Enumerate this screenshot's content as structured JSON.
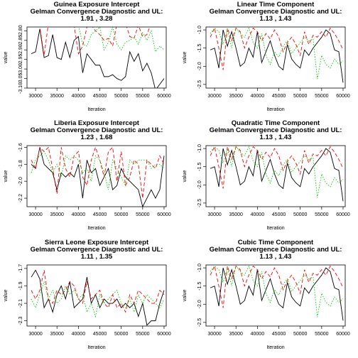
{
  "chart_data": [
    {
      "type": "line",
      "title": [
        "Guinea Exposure Intercept",
        "Gelman Convergence Diagnostic and UL:",
        "1.91 ,  3.28"
      ],
      "xlabel": "Iteration",
      "ylabel": "value",
      "xlim": [
        28000,
        60500
      ],
      "ylim": [
        -3.1,
        -2.78
      ],
      "xticks": [
        30000,
        35000,
        40000,
        45000,
        50000,
        55000,
        60000
      ],
      "yticks": [
        -3.1,
        -3.05,
        -3.0,
        -2.95,
        -2.9,
        -2.85,
        -2.8
      ],
      "ytick_labels": [
        "-3.10",
        "-3.05",
        "-3.00",
        "-2.95",
        "-2.90",
        "-2.85",
        "-2.80"
      ],
      "x": [
        29000,
        30000,
        31000,
        32000,
        33000,
        34000,
        35000,
        36000,
        37000,
        38000,
        39000,
        40000,
        41000,
        42000,
        43000,
        44000,
        45000,
        46000,
        47000,
        48000,
        49000,
        50000,
        51000,
        52000,
        53000,
        54000,
        55000,
        56000,
        57000,
        58000,
        59000,
        60000
      ],
      "series": [
        {
          "color": "#000000",
          "dash": "",
          "values": [
            -2.92,
            -2.91,
            -2.79,
            -2.94,
            -2.93,
            -2.82,
            -2.94,
            -2.95,
            -2.86,
            -2.94,
            -2.85,
            -2.83,
            -3.02,
            -2.92,
            -2.95,
            -2.98,
            -2.98,
            -3.04,
            -3.04,
            -3.03,
            -3.05,
            -3.06,
            -3.04,
            -2.91,
            -2.96,
            -2.92,
            -3.01,
            -2.97,
            -3.02,
            -3.11,
            -3.08,
            -3.05
          ]
        },
        {
          "color": "#ff0000",
          "dash": "5,3",
          "values": [
            -2.77,
            -2.77,
            -2.78,
            -2.93,
            -2.76,
            -2.76,
            -2.76,
            -2.77,
            -2.77,
            -2.78,
            -2.77,
            -2.92,
            -2.88,
            -2.78,
            -2.77,
            -2.8,
            -2.82,
            -2.85,
            -2.84,
            -2.88,
            -2.76,
            -2.77,
            -2.76,
            -2.83,
            -2.84,
            -2.77,
            -2.83,
            -2.82,
            -2.76,
            -2.75,
            -2.76,
            -2.77
          ]
        },
        {
          "color": "#00cc00",
          "dash": "1.5,2",
          "values": [
            -2.77,
            -2.76,
            -2.77,
            -2.76,
            -2.77,
            -2.76,
            -2.76,
            -2.77,
            -2.76,
            -2.77,
            -2.76,
            -2.77,
            -2.87,
            -2.88,
            -2.82,
            -2.8,
            -2.78,
            -2.9,
            -2.86,
            -2.78,
            -2.87,
            -2.9,
            -2.86,
            -2.85,
            -2.83,
            -2.87,
            -2.81,
            -2.85,
            -2.8,
            -2.91,
            -2.88,
            -2.9
          ]
        }
      ]
    },
    {
      "type": "line",
      "title": [
        "Linear Time Component",
        "Gelman Convergence Diagnostic and UL:",
        "1.13 ,  1.43"
      ],
      "xlabel": "Iteration",
      "ylabel": "value",
      "xlim": [
        28000,
        60500
      ],
      "ylim": [
        -2.6,
        -0.92
      ],
      "xticks": [
        30000,
        35000,
        40000,
        45000,
        50000,
        55000,
        60000
      ],
      "yticks": [
        -2.5,
        -2.0,
        -1.5,
        -1.0
      ],
      "ytick_labels": [
        "-2.5",
        "-2.0",
        "-1.5",
        "-1.0"
      ],
      "x": [
        29000,
        30000,
        31000,
        32000,
        33000,
        34000,
        35000,
        36000,
        37000,
        38000,
        39000,
        40000,
        41000,
        42000,
        43000,
        44000,
        45000,
        46000,
        47000,
        48000,
        49000,
        50000,
        51000,
        52000,
        53000,
        54000,
        55000,
        56000,
        57000,
        58000,
        59000,
        60000
      ],
      "series": [
        {
          "color": "#000000",
          "dash": "",
          "values": [
            -1.55,
            -1.5,
            -2.05,
            -1.0,
            -1.45,
            -1.05,
            -1.5,
            -2.0,
            -1.9,
            -1.5,
            -1.75,
            -1.05,
            -1.9,
            -1.6,
            -1.3,
            -1.7,
            -2.0,
            -2.1,
            -1.4,
            -1.8,
            -1.95,
            -2.05,
            -1.55,
            -1.7,
            -1.5,
            -1.35,
            -1.2,
            -1.0,
            -1.1,
            -1.55,
            -1.6,
            -2.45
          ]
        },
        {
          "color": "#ff0000",
          "dash": "5,3",
          "values": [
            -1.2,
            -0.95,
            -1.5,
            -2.1,
            -0.95,
            -1.3,
            -0.95,
            -1.05,
            -1.5,
            -1.2,
            -0.95,
            -1.05,
            -1.3,
            -1.1,
            -1.25,
            -1.0,
            -1.2,
            -1.6,
            -1.35,
            -1.2,
            -1.4,
            -1.7,
            -1.05,
            -1.4,
            -1.15,
            -1.2,
            -1.05,
            -1.2,
            -0.95,
            -1.1,
            -1.3,
            -1.55
          ]
        },
        {
          "color": "#00cc00",
          "dash": "1.5,2",
          "values": [
            -1.1,
            -0.95,
            -1.05,
            -1.4,
            -1.0,
            -1.5,
            -0.95,
            -1.1,
            -1.2,
            -0.95,
            -1.35,
            -1.5,
            -1.1,
            -1.7,
            -1.95,
            -1.6,
            -1.75,
            -1.45,
            -1.3,
            -1.65,
            -1.5,
            -1.35,
            -1.2,
            -1.3,
            -1.25,
            -2.35,
            -1.7,
            -1.95,
            -2.05,
            -1.8,
            -1.95,
            -1.85
          ]
        }
      ]
    },
    {
      "type": "line",
      "title": [
        "Liberia Exposure Intercept",
        "Gelman Convergence Diagnostic and UL:",
        "1.23 ,  1.68"
      ],
      "xlabel": "Iteration",
      "ylabel": "value",
      "xlim": [
        28000,
        60500
      ],
      "ylim": [
        -2.3,
        -1.58
      ],
      "xticks": [
        30000,
        35000,
        40000,
        45000,
        50000,
        55000,
        60000
      ],
      "yticks": [
        -2.2,
        -2.0,
        -1.8,
        -1.6
      ],
      "ytick_labels": [
        "-2.2",
        "-2.0",
        "-1.8",
        "-1.6"
      ],
      "x": [
        29000,
        30000,
        31000,
        32000,
        33000,
        34000,
        35000,
        36000,
        37000,
        38000,
        39000,
        40000,
        41000,
        42000,
        43000,
        44000,
        45000,
        46000,
        47000,
        48000,
        49000,
        50000,
        51000,
        52000,
        53000,
        54000,
        55000,
        56000,
        57000,
        58000,
        59000,
        60000
      ],
      "series": [
        {
          "color": "#000000",
          "dash": "",
          "values": [
            -1.8,
            -1.85,
            -1.6,
            -1.8,
            -1.85,
            -1.9,
            -2.1,
            -1.9,
            -1.95,
            -1.9,
            -1.95,
            -1.8,
            -2.2,
            -1.75,
            -1.9,
            -1.85,
            -2.05,
            -1.95,
            -1.85,
            -2.1,
            -2.05,
            -1.85,
            -1.95,
            -2.0,
            -2.05,
            -2.1,
            -2.3,
            -2.2,
            -2.1,
            -2.2,
            -2.1,
            -1.7
          ]
        },
        {
          "color": "#ff0000",
          "dash": "5,3",
          "values": [
            -1.75,
            -1.85,
            -1.6,
            -1.65,
            -1.6,
            -1.85,
            -2.15,
            -1.6,
            -1.85,
            -1.95,
            -1.7,
            -1.65,
            -1.95,
            -2.05,
            -1.75,
            -1.6,
            -1.75,
            -1.95,
            -1.65,
            -1.6,
            -2.0,
            -1.65,
            -2.05,
            -1.95,
            -1.75,
            -1.8,
            -2.2,
            -1.75,
            -1.8,
            -1.85,
            -1.7,
            -1.8
          ]
        },
        {
          "color": "#00cc00",
          "dash": "1.5,2",
          "values": [
            -1.9,
            -1.75,
            -1.7,
            -1.65,
            -1.75,
            -1.9,
            -1.8,
            -1.95,
            -1.7,
            -1.75,
            -1.7,
            -1.75,
            -1.9,
            -1.85,
            -2.0,
            -1.7,
            -1.75,
            -1.9,
            -2.1,
            -1.75,
            -1.85,
            -1.95,
            -2.05,
            -1.75,
            -1.8,
            -1.75,
            -1.75,
            -1.75,
            -1.85,
            -1.8,
            -1.8,
            -1.85
          ]
        }
      ]
    },
    {
      "type": "line",
      "title": [
        "Quadratic Time Component",
        "Gelman Convergence Diagnostic and UL:",
        "1.13 ,  1.43"
      ],
      "xlabel": "Iteration",
      "ylabel": "value",
      "xlim": [
        28000,
        60500
      ],
      "ylim": [
        -2.6,
        -0.92
      ],
      "xticks": [
        30000,
        35000,
        40000,
        45000,
        50000,
        55000,
        60000
      ],
      "yticks": [
        -2.5,
        -2.0,
        -1.5,
        -1.0
      ],
      "ytick_labels": [
        "-2.5",
        "-2.0",
        "-1.5",
        "-1.0"
      ],
      "x": [
        29000,
        30000,
        31000,
        32000,
        33000,
        34000,
        35000,
        36000,
        37000,
        38000,
        39000,
        40000,
        41000,
        42000,
        43000,
        44000,
        45000,
        46000,
        47000,
        48000,
        49000,
        50000,
        51000,
        52000,
        53000,
        54000,
        55000,
        56000,
        57000,
        58000,
        59000,
        60000
      ],
      "series": [
        {
          "color": "#000000",
          "dash": "",
          "values": [
            -1.55,
            -1.5,
            -2.05,
            -1.0,
            -1.45,
            -1.05,
            -1.5,
            -2.0,
            -1.9,
            -1.5,
            -1.75,
            -1.05,
            -1.9,
            -1.6,
            -1.3,
            -1.7,
            -2.0,
            -2.1,
            -1.4,
            -1.8,
            -1.95,
            -2.05,
            -1.55,
            -1.7,
            -1.5,
            -1.35,
            -1.2,
            -1.0,
            -1.1,
            -1.55,
            -1.6,
            -2.45
          ]
        },
        {
          "color": "#ff0000",
          "dash": "5,3",
          "values": [
            -1.2,
            -0.95,
            -1.5,
            -2.1,
            -0.95,
            -1.3,
            -0.95,
            -1.05,
            -1.5,
            -1.2,
            -0.95,
            -1.05,
            -1.3,
            -1.1,
            -1.25,
            -1.0,
            -1.2,
            -1.6,
            -1.35,
            -1.2,
            -1.4,
            -1.7,
            -1.05,
            -1.4,
            -1.15,
            -1.2,
            -1.05,
            -1.2,
            -0.95,
            -1.1,
            -1.3,
            -1.55
          ]
        },
        {
          "color": "#00cc00",
          "dash": "1.5,2",
          "values": [
            -1.1,
            -0.95,
            -1.05,
            -1.4,
            -1.0,
            -1.5,
            -0.95,
            -1.1,
            -1.2,
            -0.95,
            -1.35,
            -1.5,
            -1.1,
            -1.7,
            -1.95,
            -1.6,
            -1.75,
            -1.45,
            -1.3,
            -1.65,
            -1.5,
            -1.35,
            -1.2,
            -1.3,
            -1.25,
            -2.35,
            -1.7,
            -1.95,
            -2.05,
            -1.8,
            -1.95,
            -1.85
          ]
        }
      ]
    },
    {
      "type": "line",
      "title": [
        "Sierra Leone Exposure Intercept",
        "Gelman Convergence Diagnostic and UL:",
        "1.11 ,  1.35"
      ],
      "xlabel": "Iteration",
      "ylabel": "value",
      "xlim": [
        28000,
        60500
      ],
      "ylim": [
        -2.36,
        -1.66
      ],
      "xticks": [
        30000,
        35000,
        40000,
        45000,
        50000,
        55000,
        60000
      ],
      "yticks": [
        -2.3,
        -2.1,
        -1.9,
        -1.7
      ],
      "ytick_labels": [
        "-2.3",
        "-2.1",
        "-1.9",
        "-1.7"
      ],
      "x": [
        29000,
        30000,
        31000,
        32000,
        33000,
        34000,
        35000,
        36000,
        37000,
        38000,
        39000,
        40000,
        41000,
        42000,
        43000,
        44000,
        45000,
        46000,
        47000,
        48000,
        49000,
        50000,
        51000,
        52000,
        53000,
        54000,
        55000,
        56000,
        57000,
        58000,
        59000,
        60000
      ],
      "series": [
        {
          "color": "#000000",
          "dash": "",
          "values": [
            -1.8,
            -1.72,
            -1.82,
            -2.15,
            -2.05,
            -2.2,
            -2.0,
            -1.9,
            -2.05,
            -1.85,
            -2.15,
            -2.1,
            -2.05,
            -1.8,
            -2.1,
            -2.0,
            -2.15,
            -2.05,
            -2.1,
            -2.1,
            -2.05,
            -2.15,
            -2.1,
            -2.15,
            -2.1,
            -2.25,
            -2.1,
            -2.35,
            -2.3,
            -2.3,
            -2.1,
            -1.95
          ]
        },
        {
          "color": "#ff0000",
          "dash": "5,3",
          "values": [
            -1.95,
            -2.05,
            -1.95,
            -1.72,
            -2.05,
            -2.1,
            -1.95,
            -2.0,
            -1.95,
            -1.85,
            -1.9,
            -2.05,
            -2.1,
            -1.85,
            -2.05,
            -2.0,
            -1.95,
            -2.1,
            -2.15,
            -2.0,
            -2.15,
            -2.1,
            -2.2,
            -2.0,
            -2.1,
            -1.95,
            -2.0,
            -2.05,
            -2.1,
            -2.1,
            -1.95,
            -2.0
          ]
        },
        {
          "color": "#00cc00",
          "dash": "1.5,2",
          "values": [
            -2.05,
            -2.15,
            -2.0,
            -1.85,
            -2.05,
            -1.95,
            -2.1,
            -2.05,
            -1.9,
            -2.0,
            -1.95,
            -2.05,
            -2.0,
            -2.2,
            -2.1,
            -2.25,
            -2.0,
            -2.1,
            -2.05,
            -2.0,
            -1.95,
            -2.1,
            -2.15,
            -2.05,
            -2.2,
            -2.0,
            -2.1,
            -2.0,
            -2.05,
            -2.1,
            -2.15,
            -2.05
          ]
        }
      ]
    },
    {
      "type": "line",
      "title": [
        "Cubic Time Component",
        "Gelman Convergence Diagnostic and UL:",
        "1.13 ,  1.43"
      ],
      "xlabel": "Iteration",
      "ylabel": "value",
      "xlim": [
        28000,
        60500
      ],
      "ylim": [
        -2.6,
        -0.92
      ],
      "xticks": [
        30000,
        35000,
        40000,
        45000,
        50000,
        55000,
        60000
      ],
      "yticks": [
        -2.5,
        -2.0,
        -1.5,
        -1.0
      ],
      "ytick_labels": [
        "-2.5",
        "-2.0",
        "-1.5",
        "-1.0"
      ],
      "x": [
        29000,
        30000,
        31000,
        32000,
        33000,
        34000,
        35000,
        36000,
        37000,
        38000,
        39000,
        40000,
        41000,
        42000,
        43000,
        44000,
        45000,
        46000,
        47000,
        48000,
        49000,
        50000,
        51000,
        52000,
        53000,
        54000,
        55000,
        56000,
        57000,
        58000,
        59000,
        60000
      ],
      "series": [
        {
          "color": "#000000",
          "dash": "",
          "values": [
            -1.55,
            -1.5,
            -2.05,
            -1.0,
            -1.45,
            -1.05,
            -1.5,
            -2.0,
            -1.9,
            -1.5,
            -1.75,
            -1.05,
            -1.9,
            -1.6,
            -1.3,
            -1.7,
            -2.0,
            -2.1,
            -1.4,
            -1.8,
            -1.95,
            -2.05,
            -1.55,
            -1.7,
            -1.5,
            -1.35,
            -1.2,
            -1.0,
            -1.1,
            -1.55,
            -1.6,
            -2.45
          ]
        },
        {
          "color": "#ff0000",
          "dash": "5,3",
          "values": [
            -1.2,
            -0.95,
            -1.5,
            -2.1,
            -0.95,
            -1.3,
            -0.95,
            -1.05,
            -1.5,
            -1.2,
            -0.95,
            -1.05,
            -1.3,
            -1.1,
            -1.25,
            -1.0,
            -1.2,
            -1.6,
            -1.35,
            -1.2,
            -1.4,
            -1.7,
            -1.05,
            -1.4,
            -1.15,
            -1.2,
            -1.05,
            -1.2,
            -0.95,
            -1.1,
            -1.3,
            -1.55
          ]
        },
        {
          "color": "#00cc00",
          "dash": "1.5,2",
          "values": [
            -1.1,
            -0.95,
            -1.05,
            -1.4,
            -1.0,
            -1.5,
            -0.95,
            -1.1,
            -1.2,
            -0.95,
            -1.35,
            -1.5,
            -1.1,
            -1.7,
            -1.95,
            -1.6,
            -1.75,
            -1.45,
            -1.3,
            -1.65,
            -1.5,
            -1.35,
            -1.2,
            -1.3,
            -1.25,
            -2.35,
            -1.7,
            -1.95,
            -2.05,
            -1.8,
            -1.95,
            -1.85
          ]
        }
      ]
    }
  ]
}
